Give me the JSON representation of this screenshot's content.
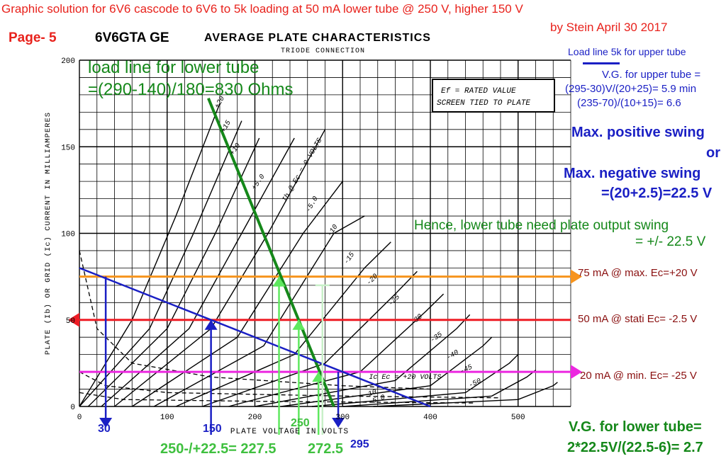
{
  "header": {
    "title_line1": "Graphic solution for 6V6 cascode to 6V6 to 5k loading  at 50 mA lower tube @ 250 V, higher 150 V",
    "title_line2": "by Stein  April 30 2017",
    "page_label": "Page- 5",
    "tube_label": "6V6GTA GE",
    "chart_title": "AVERAGE PLATE CHARACTERISTICS",
    "chart_subtitle": "TRIODE CONNECTION"
  },
  "annotations": {
    "load_line_lower_1": "load line for lower tube",
    "load_line_lower_2": "=(290-140)/180=830 Ohms",
    "legend_upper": "Load line 5k for upper tube",
    "vg_upper_1": "V.G. for upper tube =",
    "vg_upper_2": "(295-30)V/(20+25)= 5.9 min",
    "vg_upper_3": "(235-70)/(10+15)= 6.6",
    "swing_1": "Max. positive swing",
    "swing_2": "or",
    "swing_3": "Max. negative swing",
    "swing_4": "=(20+2.5)=22.5 V",
    "hence_1": "Hence, lower tube need plate output swing",
    "hence_2": "= +/- 22.5 V",
    "ma75": "75 mA @ max. Ec=+20 V",
    "ma50": "50 mA @ stati Ec= -2.5 V",
    "ma20": "20 mA @ min. Ec= -25 V",
    "v30": "30",
    "v150": "150",
    "v250": "250",
    "v295": "295",
    "swing_values": "250-/+22.5= 227.5",
    "v2725": "272.5",
    "vg_lower_1": "V.G. for lower tube=",
    "vg_lower_2": "2*22.5V/(22.5-6)= 2.7"
  },
  "note_box": {
    "line1": "Ef = RATED VALUE",
    "line2": "SCREEN TIED TO PLATE"
  },
  "chart_data": {
    "type": "line",
    "xlabel": "PLATE VOLTAGE IN VOLTS",
    "ylabel": "PLATE (Ib) OR GRID (Ic) CURRENT IN MILLIAMPERES",
    "xlim": [
      0,
      560
    ],
    "ylim": [
      0,
      200
    ],
    "xticks": [
      0,
      100,
      200,
      300,
      400,
      500
    ],
    "yticks": [
      0,
      50,
      100,
      150,
      200
    ],
    "grid": true,
    "curve_labels": [
      "+20",
      "+15",
      "+10",
      "+5.0",
      "Ib @ Ec = 0 VOLTS",
      "-5.0",
      "-10",
      "-15",
      "-20",
      "-25",
      "-30",
      "-35",
      "-40",
      "-45",
      "-50",
      "Ic Ec = +20 VOLTS",
      "10",
      "5.0"
    ],
    "plate_curves": [
      {
        "ec": 20,
        "points": [
          [
            0,
            0
          ],
          [
            60,
            50
          ],
          [
            110,
            110
          ],
          [
            160,
            175
          ]
        ]
      },
      {
        "ec": 15,
        "points": [
          [
            0,
            0
          ],
          [
            80,
            45
          ],
          [
            130,
            100
          ],
          [
            185,
            165
          ]
        ]
      },
      {
        "ec": 10,
        "points": [
          [
            10,
            0
          ],
          [
            100,
            45
          ],
          [
            155,
            100
          ],
          [
            205,
            155
          ]
        ]
      },
      {
        "ec": 5,
        "points": [
          [
            25,
            0
          ],
          [
            125,
            45
          ],
          [
            185,
            100
          ],
          [
            245,
            155
          ]
        ]
      },
      {
        "ec": 0,
        "points": [
          [
            40,
            0
          ],
          [
            150,
            45
          ],
          [
            215,
            100
          ],
          [
            280,
            160
          ]
        ]
      },
      {
        "ec": -5,
        "points": [
          [
            60,
            0
          ],
          [
            180,
            40
          ],
          [
            255,
            100
          ],
          [
            300,
            130
          ]
        ]
      },
      {
        "ec": -10,
        "points": [
          [
            85,
            0
          ],
          [
            210,
            35
          ],
          [
            290,
            100
          ],
          [
            325,
            110
          ]
        ]
      },
      {
        "ec": -15,
        "points": [
          [
            110,
            0
          ],
          [
            245,
            30
          ],
          [
            325,
            80
          ],
          [
            355,
            95
          ]
        ]
      },
      {
        "ec": -20,
        "points": [
          [
            140,
            0
          ],
          [
            280,
            25
          ],
          [
            360,
            65
          ],
          [
            385,
            78
          ]
        ]
      },
      {
        "ec": -25,
        "points": [
          [
            170,
            0
          ],
          [
            320,
            20
          ],
          [
            395,
            55
          ],
          [
            415,
            65
          ]
        ]
      },
      {
        "ec": -30,
        "points": [
          [
            200,
            0
          ],
          [
            360,
            15
          ],
          [
            430,
            45
          ],
          [
            445,
            53
          ]
        ]
      },
      {
        "ec": -35,
        "points": [
          [
            230,
            0
          ],
          [
            400,
            12
          ],
          [
            460,
            35
          ],
          [
            470,
            40
          ]
        ]
      },
      {
        "ec": -40,
        "points": [
          [
            265,
            0
          ],
          [
            440,
            8
          ],
          [
            490,
            25
          ],
          [
            500,
            30
          ]
        ]
      },
      {
        "ec": -45,
        "points": [
          [
            300,
            0
          ],
          [
            470,
            6
          ],
          [
            510,
            17
          ],
          [
            520,
            21
          ]
        ]
      },
      {
        "ec": -50,
        "points": [
          [
            335,
            0
          ],
          [
            500,
            4
          ],
          [
            540,
            12
          ],
          [
            545,
            14
          ]
        ]
      }
    ],
    "grid_curves": [
      {
        "label": "Ic Ec=+20",
        "points": [
          [
            0,
            90
          ],
          [
            20,
            45
          ],
          [
            60,
            25
          ],
          [
            150,
            17
          ],
          [
            300,
            12
          ],
          [
            400,
            10
          ]
        ]
      },
      {
        "label": "Ic Ec=+10",
        "points": [
          [
            0,
            20
          ],
          [
            30,
            12
          ],
          [
            100,
            8
          ],
          [
            300,
            6
          ],
          [
            480,
            5
          ]
        ]
      },
      {
        "label": "Ic Ec=+5",
        "points": [
          [
            0,
            8
          ],
          [
            50,
            4
          ],
          [
            200,
            3
          ],
          [
            450,
            2
          ]
        ]
      }
    ],
    "lines": [
      {
        "name": "load line for lower tube",
        "color": "#15881a",
        "points": [
          [
            147,
            178
          ],
          [
            290,
            0
          ]
        ]
      },
      {
        "name": "Load line 5k for upper tube",
        "color": "#1a1fc4",
        "points": [
          [
            0,
            80
          ],
          [
            400,
            0
          ]
        ]
      }
    ],
    "levels": [
      {
        "y": 75,
        "label": "75 mA @ max. Ec=+20 V",
        "color": "#f7941d",
        "from": 0,
        "to": 560,
        "arrow": "right"
      },
      {
        "y": 50,
        "label": "50 mA @ stati Ec= -2.5 V",
        "color": "#ee1c25",
        "from": 0,
        "to": 560,
        "arrow": "left"
      },
      {
        "y": 20,
        "label": "20 mA @ min. Ec= -25 V",
        "color": "#ec27e0",
        "from": 0,
        "to": 560,
        "arrow": "right"
      }
    ],
    "markers": [
      {
        "x": 30,
        "y_top": 75,
        "color": "#1a1fc4",
        "dir": "down"
      },
      {
        "x": 150,
        "y_top": 50,
        "color": "#1a1fc4",
        "dir": "up"
      },
      {
        "x": 295,
        "y_top": 20,
        "color": "#1a1fc4",
        "dir": "down"
      },
      {
        "x": 227.5,
        "y_top": 75,
        "color": "#5fe85f",
        "dir": "up"
      },
      {
        "x": 250,
        "y_top": 50,
        "color": "#5fe85f",
        "dir": "up"
      },
      {
        "x": 272.5,
        "y_top": 20,
        "color": "#5fe85f",
        "dir": "up"
      },
      {
        "x": 277,
        "y_top": 70,
        "color": "#c8f0c8",
        "dir": "none"
      }
    ]
  }
}
